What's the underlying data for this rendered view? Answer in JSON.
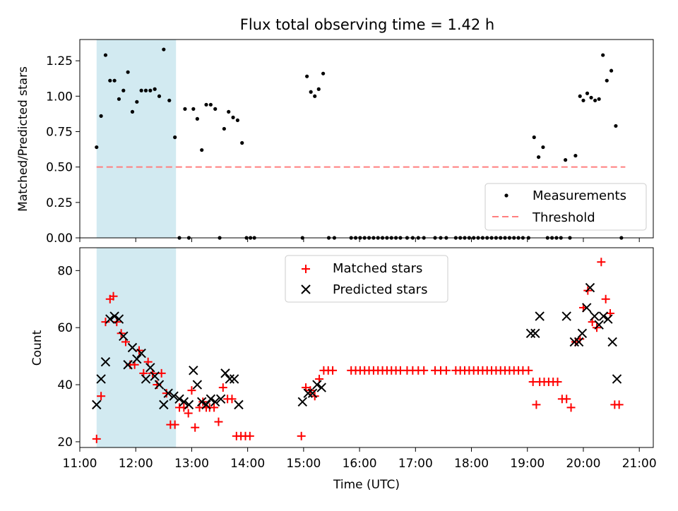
{
  "chart_data": {
    "type": "scatter",
    "title": "Flux total observing time = 1.42 h",
    "xlabel": "Time (UTC)",
    "xlim": [
      11.0,
      21.25
    ],
    "x_ticks": [
      "11:00",
      "12:00",
      "13:00",
      "14:00",
      "15:00",
      "16:00",
      "17:00",
      "18:00",
      "19:00",
      "20:00",
      "21:00"
    ],
    "shaded_interval": [
      11.3,
      12.72
    ],
    "colors": {
      "shade": "#add8e6",
      "measurement": "#000000",
      "threshold": "#ff7f7f",
      "matched": "#ff0000",
      "predicted": "#000000"
    },
    "panels": [
      {
        "ylabel": "Matched/Predicted stars",
        "ylim": [
          0.0,
          1.4
        ],
        "y_ticks": [
          "0.00",
          "0.25",
          "0.50",
          "0.75",
          "1.00",
          "1.25"
        ],
        "legend": [
          "Measurements",
          "Threshold"
        ],
        "threshold": 0.5,
        "threshold_x": [
          11.3,
          20.75
        ],
        "measurements": [
          [
            11.3,
            0.64
          ],
          [
            11.38,
            0.86
          ],
          [
            11.46,
            1.29
          ],
          [
            11.54,
            1.11
          ],
          [
            11.62,
            1.11
          ],
          [
            11.7,
            0.98
          ],
          [
            11.78,
            1.04
          ],
          [
            11.86,
            1.17
          ],
          [
            11.94,
            0.89
          ],
          [
            12.02,
            0.96
          ],
          [
            12.1,
            1.04
          ],
          [
            12.18,
            1.04
          ],
          [
            12.26,
            1.04
          ],
          [
            12.34,
            1.05
          ],
          [
            12.42,
            1.0
          ],
          [
            12.5,
            1.33
          ],
          [
            12.6,
            0.97
          ],
          [
            12.7,
            0.71
          ],
          [
            12.78,
            0.0
          ],
          [
            12.88,
            0.91
          ],
          [
            12.95,
            0.0
          ],
          [
            13.03,
            0.91
          ],
          [
            13.1,
            0.84
          ],
          [
            13.18,
            0.62
          ],
          [
            13.26,
            0.94
          ],
          [
            13.34,
            0.94
          ],
          [
            13.42,
            0.91
          ],
          [
            13.5,
            0.0
          ],
          [
            13.58,
            0.77
          ],
          [
            13.66,
            0.89
          ],
          [
            13.74,
            0.85
          ],
          [
            13.82,
            0.83
          ],
          [
            13.9,
            0.67
          ],
          [
            13.98,
            0.0
          ],
          [
            14.05,
            0.0
          ],
          [
            14.12,
            0.0
          ],
          [
            14.98,
            0.0
          ],
          [
            15.06,
            1.14
          ],
          [
            15.13,
            1.03
          ],
          [
            15.2,
            1.0
          ],
          [
            15.27,
            1.05
          ],
          [
            15.35,
            1.16
          ],
          [
            15.45,
            0.0
          ],
          [
            15.55,
            0.0
          ],
          [
            15.85,
            0.0
          ],
          [
            15.93,
            0.0
          ],
          [
            16.01,
            0.0
          ],
          [
            16.09,
            0.0
          ],
          [
            16.17,
            0.0
          ],
          [
            16.25,
            0.0
          ],
          [
            16.33,
            0.0
          ],
          [
            16.41,
            0.0
          ],
          [
            16.49,
            0.0
          ],
          [
            16.57,
            0.0
          ],
          [
            16.65,
            0.0
          ],
          [
            16.73,
            0.0
          ],
          [
            16.85,
            0.0
          ],
          [
            16.95,
            0.0
          ],
          [
            17.05,
            0.0
          ],
          [
            17.15,
            0.0
          ],
          [
            17.35,
            0.0
          ],
          [
            17.45,
            0.0
          ],
          [
            17.55,
            0.0
          ],
          [
            17.72,
            0.0
          ],
          [
            17.8,
            0.0
          ],
          [
            17.88,
            0.0
          ],
          [
            17.96,
            0.0
          ],
          [
            18.04,
            0.0
          ],
          [
            18.12,
            0.0
          ],
          [
            18.2,
            0.0
          ],
          [
            18.28,
            0.0
          ],
          [
            18.36,
            0.0
          ],
          [
            18.44,
            0.0
          ],
          [
            18.52,
            0.0
          ],
          [
            18.6,
            0.0
          ],
          [
            18.68,
            0.0
          ],
          [
            18.76,
            0.0
          ],
          [
            18.84,
            0.0
          ],
          [
            18.92,
            0.0
          ],
          [
            19.02,
            0.0
          ],
          [
            19.12,
            0.71
          ],
          [
            19.2,
            0.57
          ],
          [
            19.28,
            0.64
          ],
          [
            19.36,
            0.0
          ],
          [
            19.44,
            0.0
          ],
          [
            19.52,
            0.0
          ],
          [
            19.6,
            0.0
          ],
          [
            19.68,
            0.55
          ],
          [
            19.76,
            0.0
          ],
          [
            19.86,
            0.58
          ],
          [
            19.94,
            1.0
          ],
          [
            20.0,
            0.97
          ],
          [
            20.07,
            1.02
          ],
          [
            20.14,
            0.99
          ],
          [
            20.21,
            0.97
          ],
          [
            20.28,
            0.98
          ],
          [
            20.35,
            1.29
          ],
          [
            20.42,
            1.11
          ],
          [
            20.5,
            1.18
          ],
          [
            20.58,
            0.79
          ],
          [
            20.68,
            0.0
          ]
        ]
      },
      {
        "ylabel": "Count",
        "ylim": [
          18,
          88
        ],
        "y_ticks": [
          "20",
          "40",
          "60",
          "80"
        ],
        "legend": [
          "Matched stars",
          "Predicted stars"
        ],
        "matched": [
          [
            11.3,
            21
          ],
          [
            11.38,
            36
          ],
          [
            11.46,
            62
          ],
          [
            11.54,
            70
          ],
          [
            11.6,
            71
          ],
          [
            11.66,
            62
          ],
          [
            11.74,
            58
          ],
          [
            11.82,
            55
          ],
          [
            11.9,
            47
          ],
          [
            11.98,
            47
          ],
          [
            12.06,
            52
          ],
          [
            12.14,
            44
          ],
          [
            12.22,
            48
          ],
          [
            12.3,
            44
          ],
          [
            12.38,
            40
          ],
          [
            12.46,
            44
          ],
          [
            12.55,
            37
          ],
          [
            12.62,
            26
          ],
          [
            12.7,
            26
          ],
          [
            12.78,
            32
          ],
          [
            12.86,
            32
          ],
          [
            12.94,
            30
          ],
          [
            13.0,
            38
          ],
          [
            13.06,
            25
          ],
          [
            13.14,
            32
          ],
          [
            13.2,
            34
          ],
          [
            13.26,
            32
          ],
          [
            13.32,
            32
          ],
          [
            13.4,
            32
          ],
          [
            13.48,
            27
          ],
          [
            13.56,
            39
          ],
          [
            13.64,
            35
          ],
          [
            13.72,
            35
          ],
          [
            13.8,
            22
          ],
          [
            13.88,
            22
          ],
          [
            13.96,
            22
          ],
          [
            14.04,
            22
          ],
          [
            14.96,
            22
          ],
          [
            15.04,
            39
          ],
          [
            15.12,
            38
          ],
          [
            15.2,
            36
          ],
          [
            15.28,
            42
          ],
          [
            15.36,
            45
          ],
          [
            15.44,
            45
          ],
          [
            15.52,
            45
          ],
          [
            15.85,
            45
          ],
          [
            15.93,
            45
          ],
          [
            16.01,
            45
          ],
          [
            16.09,
            45
          ],
          [
            16.17,
            45
          ],
          [
            16.25,
            45
          ],
          [
            16.33,
            45
          ],
          [
            16.41,
            45
          ],
          [
            16.49,
            45
          ],
          [
            16.57,
            45
          ],
          [
            16.65,
            45
          ],
          [
            16.73,
            45
          ],
          [
            16.85,
            45
          ],
          [
            16.95,
            45
          ],
          [
            17.05,
            45
          ],
          [
            17.15,
            45
          ],
          [
            17.35,
            45
          ],
          [
            17.45,
            45
          ],
          [
            17.55,
            45
          ],
          [
            17.72,
            45
          ],
          [
            17.8,
            45
          ],
          [
            17.88,
            45
          ],
          [
            17.96,
            45
          ],
          [
            18.04,
            45
          ],
          [
            18.12,
            45
          ],
          [
            18.2,
            45
          ],
          [
            18.28,
            45
          ],
          [
            18.36,
            45
          ],
          [
            18.44,
            45
          ],
          [
            18.52,
            45
          ],
          [
            18.6,
            45
          ],
          [
            18.68,
            45
          ],
          [
            18.76,
            45
          ],
          [
            18.84,
            45
          ],
          [
            18.92,
            45
          ],
          [
            19.02,
            45
          ],
          [
            19.1,
            41
          ],
          [
            19.16,
            33
          ],
          [
            19.22,
            41
          ],
          [
            19.3,
            41
          ],
          [
            19.38,
            41
          ],
          [
            19.46,
            41
          ],
          [
            19.54,
            41
          ],
          [
            19.62,
            35
          ],
          [
            19.7,
            35
          ],
          [
            19.78,
            32
          ],
          [
            19.86,
            55
          ],
          [
            19.94,
            56
          ],
          [
            20.0,
            67
          ],
          [
            20.08,
            73
          ],
          [
            20.16,
            62
          ],
          [
            20.24,
            60
          ],
          [
            20.32,
            83
          ],
          [
            20.4,
            70
          ],
          [
            20.48,
            65
          ],
          [
            20.56,
            33
          ],
          [
            20.64,
            33
          ]
        ],
        "predicted": [
          [
            11.3,
            33
          ],
          [
            11.38,
            42
          ],
          [
            11.46,
            48
          ],
          [
            11.54,
            63
          ],
          [
            11.62,
            64
          ],
          [
            11.7,
            63
          ],
          [
            11.78,
            57
          ],
          [
            11.86,
            47
          ],
          [
            11.94,
            53
          ],
          [
            12.02,
            49
          ],
          [
            12.1,
            51
          ],
          [
            12.18,
            42
          ],
          [
            12.26,
            46
          ],
          [
            12.34,
            43
          ],
          [
            12.42,
            40
          ],
          [
            12.5,
            33
          ],
          [
            12.58,
            37
          ],
          [
            12.68,
            36
          ],
          [
            12.78,
            35
          ],
          [
            12.86,
            34
          ],
          [
            12.95,
            33
          ],
          [
            13.03,
            45
          ],
          [
            13.1,
            40
          ],
          [
            13.18,
            34
          ],
          [
            13.26,
            33
          ],
          [
            13.34,
            35
          ],
          [
            13.42,
            34
          ],
          [
            13.52,
            35
          ],
          [
            13.6,
            44
          ],
          [
            13.68,
            42
          ],
          [
            13.76,
            42
          ],
          [
            13.84,
            33
          ],
          [
            14.98,
            34
          ],
          [
            15.08,
            37
          ],
          [
            15.16,
            37
          ],
          [
            15.24,
            40
          ],
          [
            15.32,
            39
          ],
          [
            19.06,
            58
          ],
          [
            19.14,
            58
          ],
          [
            19.22,
            64
          ],
          [
            19.7,
            64
          ],
          [
            19.84,
            55
          ],
          [
            19.92,
            55
          ],
          [
            19.98,
            58
          ],
          [
            20.06,
            67
          ],
          [
            20.12,
            74
          ],
          [
            20.2,
            64
          ],
          [
            20.28,
            61
          ],
          [
            20.36,
            64
          ],
          [
            20.44,
            63
          ],
          [
            20.52,
            55
          ],
          [
            20.6,
            42
          ]
        ]
      }
    ]
  }
}
